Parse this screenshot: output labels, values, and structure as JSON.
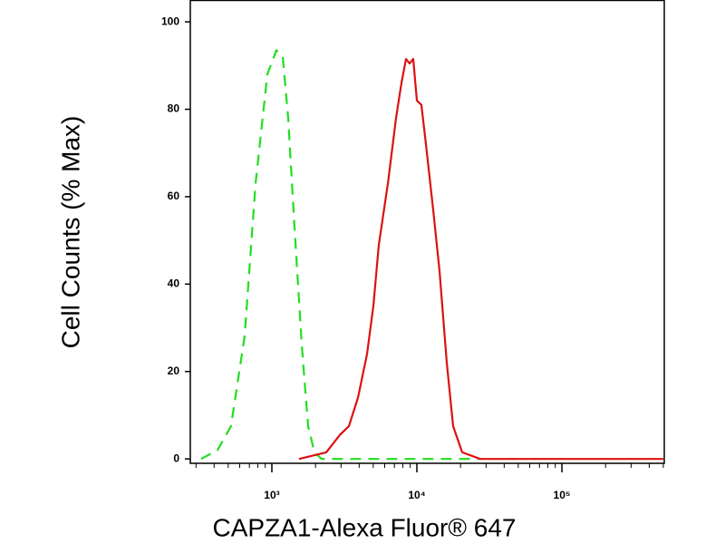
{
  "chart_data": {
    "type": "line",
    "xlabel": "CAPZA1-Alexa Fluor® 647",
    "ylabel": "Cell Counts (% Max)",
    "xscale": "log",
    "xlim": [
      274,
      508000
    ],
    "ylim": [
      -1,
      105
    ],
    "xticks": [
      {
        "value": 1000,
        "label": "10³"
      },
      {
        "value": 10000,
        "label": "10⁴"
      },
      {
        "value": 100000,
        "label": "10⁵"
      }
    ],
    "xminorticks": [
      300,
      400,
      500,
      600,
      700,
      800,
      900,
      2000,
      3000,
      4000,
      5000,
      6000,
      7000,
      8000,
      9000,
      20000,
      30000,
      40000,
      50000,
      60000,
      70000,
      80000,
      90000,
      200000,
      300000,
      400000,
      500000
    ],
    "yticks": [
      0,
      20,
      40,
      60,
      80,
      100
    ],
    "series": [
      {
        "color": "#22dd22",
        "linestyle": "dashed",
        "x": [
          325,
          422,
          523,
          649,
          772,
          931,
          1075,
          1189,
          1296,
          1433,
          1608,
          1778,
          1967,
          2207,
          27384
        ],
        "values": [
          0,
          2,
          7.5,
          28,
          63,
          88,
          93.5,
          92,
          78,
          53,
          26,
          7.5,
          1.5,
          0,
          0
        ]
      },
      {
        "color": "#dd1111",
        "linestyle": "solid",
        "x": [
          1540,
          2371,
          2943,
          3398,
          3926,
          4531,
          5012,
          5464,
          6310,
          7181,
          7833,
          8414,
          8913,
          9441,
          10000,
          10750,
          11548,
          12957,
          14330,
          16070,
          17783,
          20535,
          27384,
          500000
        ],
        "values": [
          0,
          1.5,
          5.5,
          7.5,
          14,
          24,
          35,
          49,
          63,
          78,
          86,
          91.5,
          90.5,
          91.5,
          82,
          81,
          72,
          57,
          43,
          22,
          7.5,
          1.5,
          0,
          0
        ]
      }
    ]
  }
}
